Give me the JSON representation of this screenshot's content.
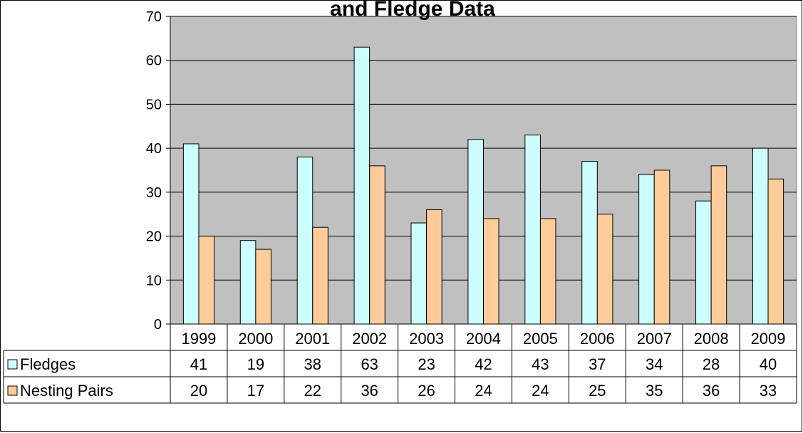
{
  "chart_data": {
    "type": "bar",
    "title": "and Fledge Data",
    "categories": [
      "1999",
      "2000",
      "2001",
      "2002",
      "2003",
      "2004",
      "2005",
      "2006",
      "2007",
      "2008",
      "2009"
    ],
    "series": [
      {
        "name": "Fledges",
        "values": [
          41,
          19,
          38,
          63,
          23,
          42,
          43,
          37,
          34,
          28,
          40
        ],
        "color": "#ccffff"
      },
      {
        "name": "Nesting Pairs",
        "values": [
          20,
          17,
          22,
          36,
          26,
          24,
          24,
          25,
          35,
          36,
          33
        ],
        "color": "#ffcc99"
      }
    ],
    "ylim": [
      0,
      70
    ],
    "yticks": [
      0,
      10,
      20,
      30,
      40,
      50,
      60,
      70
    ],
    "grid": true,
    "plot_background": "#c0c0c0",
    "legend": "data-table"
  }
}
